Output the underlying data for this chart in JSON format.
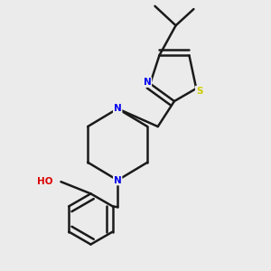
{
  "background_color": "#ebebeb",
  "bond_color": "#1a1a1a",
  "atom_colors": {
    "N": "#0000ee",
    "S": "#cccc00",
    "O": "#dd0000",
    "C": "#1a1a1a"
  },
  "figsize": [
    3.0,
    3.0
  ],
  "dpi": 100
}
